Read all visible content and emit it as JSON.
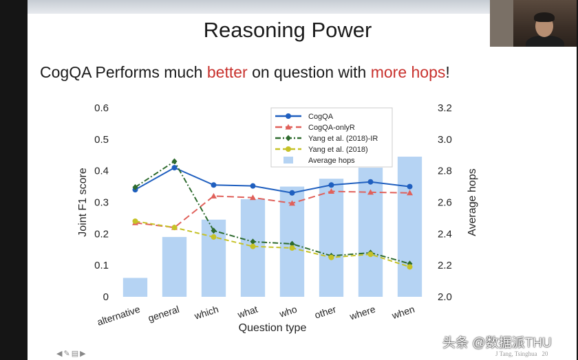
{
  "slide": {
    "title": "Reasoning Power",
    "subtitle_parts": [
      "CogQA Performs much ",
      "better",
      " on question with ",
      "more hops",
      "!"
    ],
    "footer": "J Tang, Tsinghua",
    "page_number": "20"
  },
  "watermark": "头条 @数据派THU",
  "nav_icons": [
    "arrow-left-icon",
    "pen-icon",
    "menu-icon",
    "arrow-right-icon"
  ],
  "chart_data": {
    "type": "bar",
    "xlabel": "Question type",
    "ylabel": "Joint F1 score",
    "y2label": "Average hops",
    "categories": [
      "alternative",
      "general",
      "which",
      "what",
      "who",
      "other",
      "where",
      "when"
    ],
    "ylim": [
      0,
      0.6
    ],
    "y2lim": [
      2.0,
      3.2
    ],
    "yticks": [
      "0",
      "0.1",
      "0.2",
      "0.3",
      "0.4",
      "0.5",
      "0.6"
    ],
    "y2ticks": [
      "2.0",
      "2.2",
      "2.4",
      "2.6",
      "2.8",
      "3.0",
      "3.2"
    ],
    "legend_position": "top-center",
    "bars": {
      "name": "Average hops",
      "color": "#b5d3f3",
      "values": [
        2.12,
        2.38,
        2.49,
        2.62,
        2.7,
        2.75,
        2.82,
        2.89
      ]
    },
    "series": [
      {
        "name": "CogQA",
        "color": "#1f5fbf",
        "dash": "solid",
        "marker": "circle",
        "values": [
          0.34,
          0.41,
          0.355,
          0.352,
          0.33,
          0.355,
          0.365,
          0.35
        ]
      },
      {
        "name": "CogQA-onlyR",
        "color": "#e0605a",
        "dash": "long",
        "marker": "triangle",
        "values": [
          0.235,
          0.22,
          0.32,
          0.315,
          0.297,
          0.335,
          0.332,
          0.33
        ]
      },
      {
        "name": "Yang et al. (2018)-IR",
        "color": "#2e6b2e",
        "dash": "dashdot",
        "marker": "diamond",
        "values": [
          0.348,
          0.43,
          0.21,
          0.175,
          0.168,
          0.13,
          0.14,
          0.105
        ]
      },
      {
        "name": "Yang et al. (2018)",
        "color": "#c6c227",
        "dash": "dash",
        "marker": "circle",
        "values": [
          0.24,
          0.22,
          0.19,
          0.16,
          0.155,
          0.125,
          0.135,
          0.095
        ]
      }
    ]
  }
}
